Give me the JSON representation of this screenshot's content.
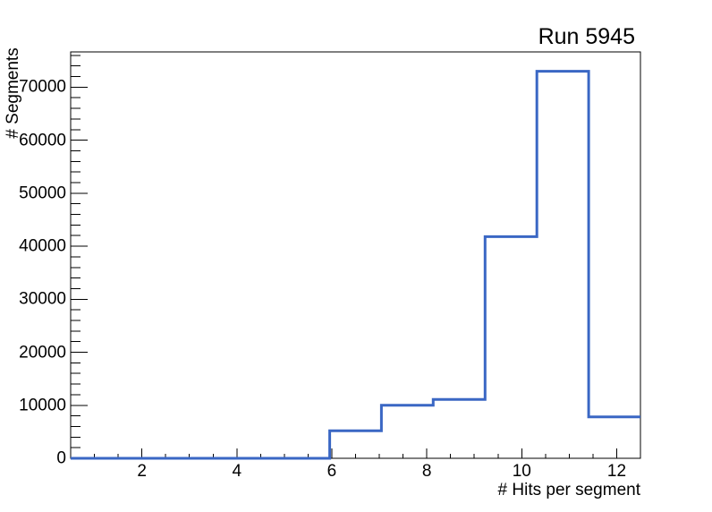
{
  "chart_data": {
    "type": "bar",
    "subtype": "step-outline-histogram",
    "title": "Run 5945",
    "xlabel": "# Hits per segment",
    "ylabel": "# Segments",
    "xlim": [
      0.5,
      12.5
    ],
    "ylim": [
      0,
      76650
    ],
    "bin_edges": [
      0.5,
      1.591,
      2.682,
      3.773,
      4.864,
      5.955,
      7.045,
      8.136,
      9.227,
      10.318,
      11.409,
      12.5
    ],
    "values": [
      0,
      0,
      0,
      0,
      0,
      5200,
      10000,
      11100,
      41800,
      73000,
      7800
    ],
    "x_major_ticks": [
      2,
      4,
      6,
      8,
      10,
      12
    ],
    "x_tick_labels": [
      "2",
      "4",
      "6",
      "8",
      "10",
      "12"
    ],
    "x_minor_tick_step": 0.5,
    "y_major_ticks": [
      0,
      10000,
      20000,
      30000,
      40000,
      50000,
      60000,
      70000
    ],
    "y_tick_labels": [
      "0",
      "10000",
      "20000",
      "30000",
      "40000",
      "50000",
      "60000",
      "70000"
    ],
    "y_minor_tick_step": 2000,
    "grid": false,
    "legend": null,
    "line_color": "#3a67c4",
    "frame_color": "#000000",
    "background_color": "#ffffff"
  }
}
